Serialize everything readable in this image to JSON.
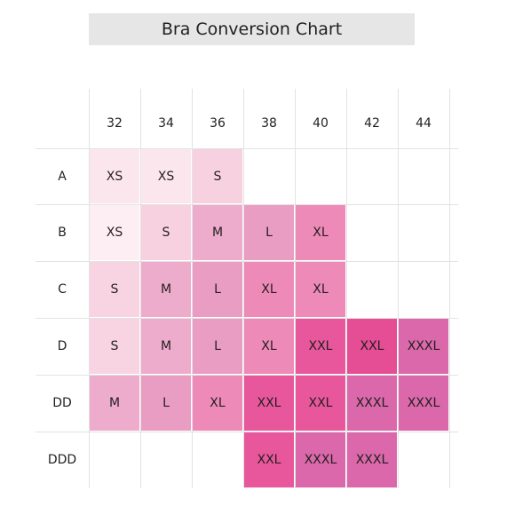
{
  "title": "Bra Conversion Chart",
  "band_sizes": [
    "32",
    "34",
    "36",
    "38",
    "40",
    "42",
    "44"
  ],
  "cup_sizes": [
    "A",
    "B",
    "C",
    "D",
    "DD",
    "DDD"
  ],
  "sizes": [
    [
      "XS",
      "XS",
      "S",
      "",
      "",
      "",
      ""
    ],
    [
      "XS",
      "S",
      "M",
      "L",
      "XL",
      "",
      ""
    ],
    [
      "S",
      "M",
      "L",
      "XL",
      "XL",
      "",
      ""
    ],
    [
      "S",
      "M",
      "L",
      "XL",
      "XXL",
      "XXL",
      "XXXL"
    ],
    [
      "M",
      "L",
      "XL",
      "XXL",
      "XXL",
      "XXXL",
      "XXXL"
    ],
    [
      "",
      "",
      "",
      "XXL",
      "XXXL",
      "XXXL",
      ""
    ]
  ],
  "size_colors": {
    "XS": "#fbe6ee",
    "S": "#f7d1e0",
    "M": "#eeaccc",
    "L": "#ea9dc3",
    "XL": "#ee8ab8",
    "XXL": "#e8579c",
    "XXXL": "#da68aa"
  },
  "size_cell_overrides": [
    {
      "row": 0,
      "col": 2,
      "color": "#f7d1e0"
    },
    {
      "row": 1,
      "col": 0,
      "color": "#fdeef4"
    },
    {
      "row": 2,
      "col": 0,
      "color": "#f8d4e2"
    },
    {
      "row": 3,
      "col": 0,
      "color": "#f8d4e2"
    },
    {
      "row": 3,
      "col": 5,
      "color": "#e54d95"
    },
    {
      "row": 4,
      "col": 0,
      "color": "#eeaccc"
    },
    {
      "row": 4,
      "col": 1,
      "color": "#ea9dc3"
    }
  ]
}
